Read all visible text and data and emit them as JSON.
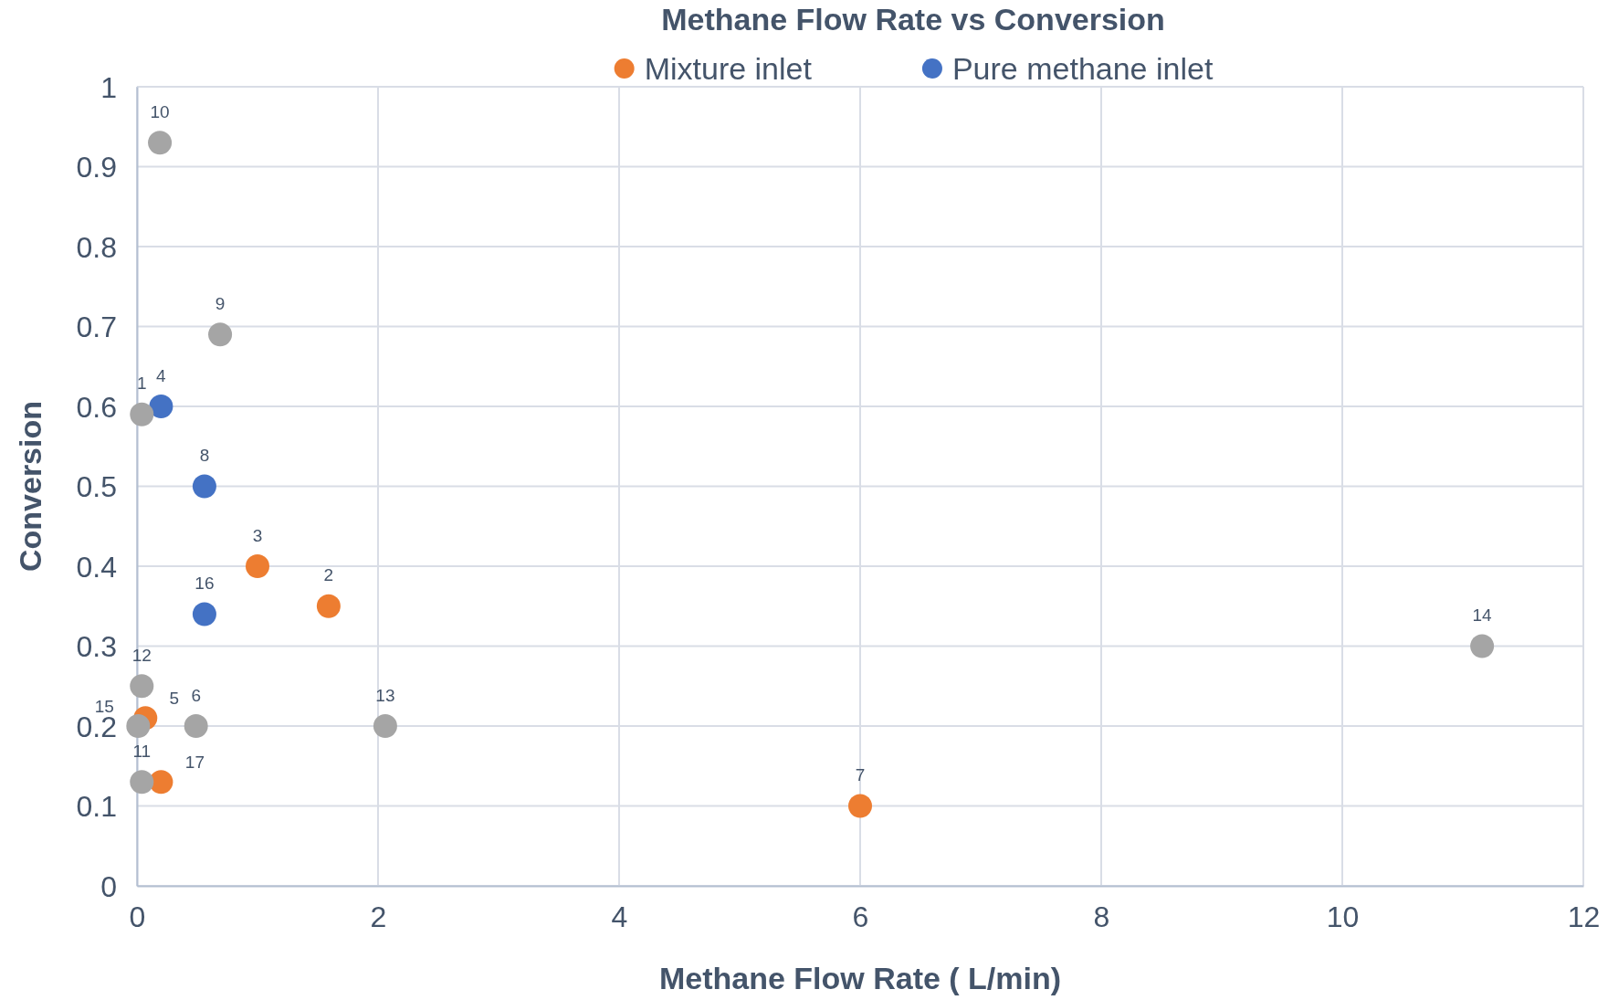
{
  "chart_data": {
    "type": "scatter",
    "title": "Methane Flow Rate vs Conversion",
    "xlabel": "Methane Flow Rate ( L/min)",
    "ylabel": "Conversion",
    "xlim": [
      0,
      12
    ],
    "xticks": [
      0,
      2,
      4,
      6,
      8,
      10,
      12
    ],
    "ylim": [
      0,
      1
    ],
    "yticks": [
      0,
      0.1,
      0.2,
      0.3,
      0.4,
      0.5,
      0.6,
      0.7,
      0.8,
      0.9,
      1
    ],
    "grid": true,
    "legend": "top",
    "marker": "circle",
    "series": [
      {
        "name": "Mixture inlet",
        "color": "#ed7d31",
        "x": [
          1.59,
          1.0,
          0.07,
          6.0,
          0.2
        ],
        "values": [
          0.35,
          0.4,
          0.21,
          0.1,
          0.13
        ]
      },
      {
        "name": "Pure methane inlet",
        "color": "#4472c4",
        "x": [
          0.2,
          0.56,
          0.56
        ],
        "values": [
          0.6,
          0.5,
          0.34
        ]
      },
      {
        "color": "#a5a5a5",
        "x": [
          0.04,
          0.49,
          0.69,
          0.19,
          0.04,
          0.04,
          2.06,
          11.16,
          0.01
        ],
        "values": [
          0.59,
          0.2,
          0.69,
          0.93,
          0.13,
          0.25,
          0.2,
          0.3,
          0.2
        ]
      }
    ],
    "annotations": [
      {
        "text": "1",
        "x": 0.04,
        "y": 0.59
      },
      {
        "text": "2",
        "x": 1.59,
        "y": 0.35
      },
      {
        "text": "3",
        "x": 1.0,
        "y": 0.4
      },
      {
        "text": "4",
        "x": 0.2,
        "y": 0.6
      },
      {
        "text": "5",
        "x": 0.07,
        "y": 0.21
      },
      {
        "text": "6",
        "x": 0.49,
        "y": 0.2
      },
      {
        "text": "7",
        "x": 6.0,
        "y": 0.1
      },
      {
        "text": "8",
        "x": 0.56,
        "y": 0.5
      },
      {
        "text": "9",
        "x": 0.69,
        "y": 0.69
      },
      {
        "text": "10",
        "x": 0.19,
        "y": 0.93
      },
      {
        "text": "11",
        "x": 0.04,
        "y": 0.13
      },
      {
        "text": "12",
        "x": 0.04,
        "y": 0.25
      },
      {
        "text": "13",
        "x": 2.06,
        "y": 0.2
      },
      {
        "text": "14",
        "x": 11.16,
        "y": 0.3
      },
      {
        "text": "15",
        "x": 0.01,
        "y": 0.2
      },
      {
        "text": "16",
        "x": 0.56,
        "y": 0.34
      },
      {
        "text": "17",
        "x": 0.2,
        "y": 0.13
      }
    ]
  }
}
